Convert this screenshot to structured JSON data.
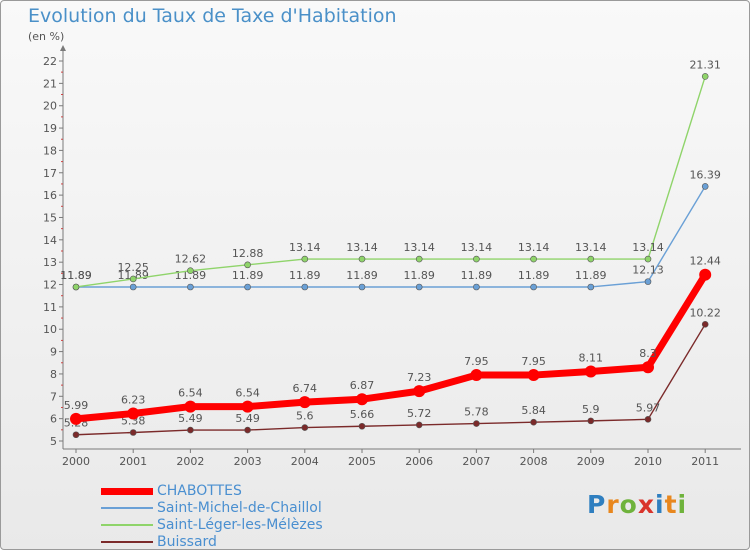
{
  "title": "Evolution du Taux de Taxe d'Habitation",
  "unit_label": "(en %)",
  "logo": {
    "text": "Proxiti",
    "letter_colors": [
      "#2f7fc0",
      "#e8871e",
      "#6fb33c",
      "#d9342b",
      "#2f7fc0",
      "#e8871e",
      "#6fb33c"
    ]
  },
  "chart_data": {
    "type": "line",
    "categories": [
      "2000",
      "2001",
      "2002",
      "2003",
      "2004",
      "2005",
      "2006",
      "2007",
      "2008",
      "2009",
      "2010",
      "2011"
    ],
    "ylim": [
      5,
      22
    ],
    "yticks": [
      5,
      6,
      7,
      8,
      9,
      10,
      11,
      12,
      13,
      14,
      15,
      16,
      17,
      18,
      19,
      20,
      21,
      22
    ],
    "grid": false,
    "legend_position": "bottom-left",
    "series": [
      {
        "name": "Buissard",
        "color": "#7b2a2a",
        "style": "thin",
        "values": [
          5.28,
          5.38,
          5.49,
          5.49,
          5.6,
          5.66,
          5.72,
          5.78,
          5.84,
          5.9,
          5.97,
          10.22
        ],
        "labels": [
          "5.28",
          "5.38",
          "5.49",
          "5.49",
          "5.6",
          "5.66",
          "5.72",
          "5.78",
          "5.84",
          "5.9",
          "5.97",
          "10.22"
        ]
      },
      {
        "name": "Saint-Michel-de-Chaillol",
        "color": "#6aa0d6",
        "style": "thin",
        "values": [
          11.89,
          11.89,
          11.89,
          11.89,
          11.89,
          11.89,
          11.89,
          11.89,
          11.89,
          11.89,
          12.13,
          16.39
        ],
        "labels": [
          "11.89",
          "11.89",
          "11.89",
          "11.89",
          "11.89",
          "11.89",
          "11.89",
          "11.89",
          "11.89",
          "11.89",
          "12.13",
          "16.39"
        ]
      },
      {
        "name": "Saint-Léger-les-Mélèzes",
        "color": "#8fd46a",
        "style": "thin",
        "values": [
          11.89,
          12.25,
          12.62,
          12.88,
          13.14,
          13.14,
          13.14,
          13.14,
          13.14,
          13.14,
          13.14,
          21.31
        ],
        "labels": [
          "11.89",
          "12.25",
          "12.62",
          "12.88",
          "13.14",
          "13.14",
          "13.14",
          "13.14",
          "13.14",
          "13.14",
          "13.14",
          "21.31"
        ]
      },
      {
        "name": "CHABOTTES",
        "color": "#ff0000",
        "style": "thick",
        "values": [
          5.99,
          6.23,
          6.54,
          6.54,
          6.74,
          6.87,
          7.23,
          7.95,
          7.95,
          8.11,
          8.3,
          12.44
        ],
        "labels": [
          "5.99",
          "6.23",
          "6.54",
          "6.54",
          "6.74",
          "6.87",
          "7.23",
          "7.95",
          "7.95",
          "8.11",
          "8.3",
          "12.44"
        ]
      }
    ],
    "legend_order": [
      "CHABOTTES",
      "Saint-Michel-de-Chaillol",
      "Saint-Léger-les-Mélèzes",
      "Buissard"
    ]
  }
}
